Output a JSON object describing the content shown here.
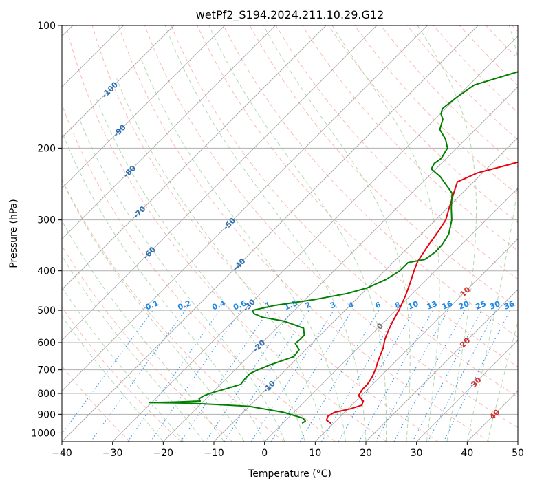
{
  "chart_data": {
    "type": "skew-t",
    "title": "wetPf2_S194.2024.211.10.29.G12",
    "xlabel": "Temperature (°C)",
    "ylabel": "Pressure (hPa)",
    "xlim": [
      -40,
      50
    ],
    "ylim": [
      1050,
      100
    ],
    "y_scale": "log",
    "grid": true,
    "x_ticks": [
      "−40",
      "−30",
      "−20",
      "−10",
      "0",
      "10",
      "20",
      "30",
      "40",
      "50"
    ],
    "x_tick_values": [
      -40,
      -30,
      -20,
      -10,
      0,
      10,
      20,
      30,
      40,
      50
    ],
    "y_ticks": [
      "100",
      "200",
      "300",
      "400",
      "500",
      "600",
      "700",
      "800",
      "900",
      "1000"
    ],
    "y_tick_values": [
      100,
      200,
      300,
      400,
      500,
      600,
      700,
      800,
      900,
      1000
    ],
    "colors": {
      "temperature": "#e8000b",
      "dewpoint": "#008000",
      "isotherm": "#999999",
      "dry_adiabat": "#fa8072",
      "moist_adiabat": "#90c990",
      "mixing_ratio": "#1e88e5",
      "grid": "#b0b0b0"
    },
    "series": [
      {
        "points": [
          [
            9.5,
            947
          ],
          [
            8.0,
            930
          ],
          [
            7.5,
            910
          ],
          [
            8.0,
            890
          ],
          [
            10.5,
            872
          ],
          [
            12.0,
            855
          ],
          [
            11.5,
            835
          ],
          [
            9.5,
            810
          ],
          [
            9.0,
            780
          ],
          [
            9.0,
            760
          ],
          [
            8.5,
            730
          ],
          [
            7.7,
            700
          ],
          [
            6.3,
            660
          ],
          [
            5.0,
            620
          ],
          [
            3.6,
            590
          ],
          [
            2.5,
            560
          ],
          [
            1.5,
            530
          ],
          [
            0.6,
            500
          ],
          [
            -1.0,
            460
          ],
          [
            -2.5,
            430
          ],
          [
            -4.2,
            400
          ],
          [
            -5.3,
            380
          ],
          [
            -6.3,
            350
          ],
          [
            -7.2,
            320
          ],
          [
            -8.0,
            300
          ],
          [
            -9.7,
            280
          ],
          [
            -11.5,
            260
          ],
          [
            -13.2,
            242
          ],
          [
            -11.0,
            230
          ],
          [
            -6.6,
            220
          ],
          [
            2.2,
            200
          ],
          [
            8.0,
            180
          ],
          [
            10.6,
            170
          ],
          [
            12.6,
            160
          ],
          [
            14.3,
            150
          ],
          [
            17.0,
            138
          ],
          [
            19.1,
            128
          ],
          [
            20.8,
            121
          ],
          [
            22.6,
            115
          ],
          [
            25.6,
            108
          ],
          [
            26.8,
            103
          ],
          [
            27.4,
            100
          ]
        ]
      },
      {
        "points": [
          [
            3.8,
            947
          ],
          [
            4.0,
            935
          ],
          [
            3.0,
            920
          ],
          [
            -2.0,
            890
          ],
          [
            -10.0,
            860
          ],
          [
            -18.0,
            850
          ],
          [
            -22.5,
            845
          ],
          [
            -30.5,
            842
          ],
          [
            -26.0,
            840
          ],
          [
            -20.7,
            835
          ],
          [
            -21.4,
            824
          ],
          [
            -21.0,
            810
          ],
          [
            -20.0,
            797
          ],
          [
            -16.0,
            760
          ],
          [
            -16.3,
            735
          ],
          [
            -16.3,
            715
          ],
          [
            -15.5,
            700
          ],
          [
            -14.0,
            680
          ],
          [
            -11.0,
            650
          ],
          [
            -11.3,
            625
          ],
          [
            -13.3,
            603
          ],
          [
            -13.1,
            588
          ],
          [
            -13.2,
            575
          ],
          [
            -14.7,
            553
          ],
          [
            -20.1,
            531
          ],
          [
            -25.0,
            520
          ],
          [
            -27.3,
            510
          ],
          [
            -28.3,
            500
          ],
          [
            -25.0,
            487
          ],
          [
            -18.0,
            470
          ],
          [
            -13.0,
            455
          ],
          [
            -10.0,
            440
          ],
          [
            -8.0,
            420
          ],
          [
            -7.0,
            400
          ],
          [
            -7.0,
            382
          ],
          [
            -4.3,
            375
          ],
          [
            -3.7,
            360
          ],
          [
            -3.8,
            345
          ],
          [
            -4.6,
            325
          ],
          [
            -6.8,
            300
          ],
          [
            -9.3,
            280
          ],
          [
            -12.0,
            258
          ],
          [
            -17.6,
            235
          ],
          [
            -20.9,
            225
          ],
          [
            -21.4,
            218
          ],
          [
            -21.0,
            212
          ],
          [
            -21.8,
            200
          ],
          [
            -24.0,
            190
          ],
          [
            -27.0,
            180
          ],
          [
            -28.4,
            170
          ],
          [
            -29.8,
            165
          ],
          [
            -30.6,
            160
          ],
          [
            -30.0,
            150
          ],
          [
            -29.0,
            140
          ],
          [
            -23.0,
            130
          ],
          [
            -20.2,
            125
          ],
          [
            -17.0,
            120
          ],
          [
            -15.6,
            115
          ],
          [
            -15.6,
            105
          ],
          [
            -15.7,
            100
          ]
        ]
      }
    ],
    "isotherm_labels": [
      {
        "t": -100,
        "text": "-100"
      },
      {
        "t": -90,
        "text": "-90"
      },
      {
        "t": -80,
        "text": "-80"
      },
      {
        "t": -70,
        "text": "-70"
      },
      {
        "t": -60,
        "text": "-60"
      },
      {
        "t": -50,
        "text": "-50"
      },
      {
        "t": -40,
        "text": "-40"
      },
      {
        "t": -30,
        "text": "-30"
      },
      {
        "t": -20,
        "text": "-20"
      },
      {
        "t": -10,
        "text": "-10"
      },
      {
        "t": 0,
        "text": "0"
      },
      {
        "t": 10,
        "text": "10"
      },
      {
        "t": 20,
        "text": "20"
      },
      {
        "t": 30,
        "text": "30"
      },
      {
        "t": 40,
        "text": "40"
      }
    ],
    "mixing_ratio_labels": [
      {
        "w": 0.1,
        "text": "0.1"
      },
      {
        "w": 0.2,
        "text": "0.2"
      },
      {
        "w": 0.4,
        "text": "0.4"
      },
      {
        "w": 0.6,
        "text": "0.6"
      },
      {
        "w": 1,
        "text": "1"
      },
      {
        "w": 1.5,
        "text": "1.5"
      },
      {
        "w": 2,
        "text": "2"
      },
      {
        "w": 3,
        "text": "3"
      },
      {
        "w": 4,
        "text": "4"
      },
      {
        "w": 6,
        "text": "6"
      },
      {
        "w": 8,
        "text": "8"
      },
      {
        "w": 10,
        "text": "10"
      },
      {
        "w": 13,
        "text": "13"
      },
      {
        "w": 16,
        "text": "16"
      },
      {
        "w": 20,
        "text": "20"
      },
      {
        "w": 25,
        "text": "25"
      },
      {
        "w": 30,
        "text": "30"
      },
      {
        "w": 36,
        "text": "36"
      }
    ]
  }
}
